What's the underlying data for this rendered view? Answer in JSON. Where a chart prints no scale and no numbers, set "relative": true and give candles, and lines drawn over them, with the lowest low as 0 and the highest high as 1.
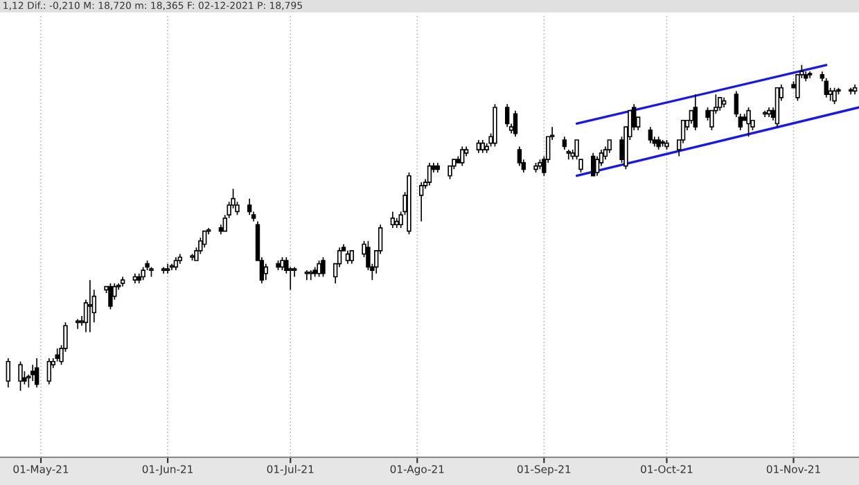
{
  "chart_data": {
    "type": "candlestick",
    "relative": true,
    "annotations": [
      "1,12 Dif.: -0,210 M: 18,720 m: 18,365 F: 02-12-2021 P: 18,795"
    ],
    "x": [
      "2021-04-23",
      "2021-04-26",
      "2021-04-27",
      "2021-04-28",
      "2021-04-29",
      "2021-04-30",
      "2021-05-03",
      "2021-05-04",
      "2021-05-05",
      "2021-05-06",
      "2021-05-07",
      "2021-05-10",
      "2021-05-11",
      "2021-05-12",
      "2021-05-13",
      "2021-05-14",
      "2021-05-17",
      "2021-05-18",
      "2021-05-19",
      "2021-05-20",
      "2021-05-21",
      "2021-05-24",
      "2021-05-25",
      "2021-05-26",
      "2021-05-27",
      "2021-05-28",
      "2021-05-31",
      "2021-06-01",
      "2021-06-02",
      "2021-06-03",
      "2021-06-04",
      "2021-06-07",
      "2021-06-08",
      "2021-06-09",
      "2021-06-10",
      "2021-06-11",
      "2021-06-14",
      "2021-06-15",
      "2021-06-16",
      "2021-06-17",
      "2021-06-18",
      "2021-06-21",
      "2021-06-22",
      "2021-06-23",
      "2021-06-24",
      "2021-06-25",
      "2021-06-28",
      "2021-06-29",
      "2021-06-30",
      "2021-07-01",
      "2021-07-02",
      "2021-07-05",
      "2021-07-06",
      "2021-07-07",
      "2021-07-08",
      "2021-07-09",
      "2021-07-12",
      "2021-07-13",
      "2021-07-14",
      "2021-07-15",
      "2021-07-16",
      "2021-07-19",
      "2021-07-20",
      "2021-07-21",
      "2021-07-22",
      "2021-07-23",
      "2021-07-26",
      "2021-07-27",
      "2021-07-28",
      "2021-07-29",
      "2021-07-30",
      "2021-08-02",
      "2021-08-03",
      "2021-08-04",
      "2021-08-05",
      "2021-08-06",
      "2021-08-09",
      "2021-08-10",
      "2021-08-11",
      "2021-08-12",
      "2021-08-13",
      "2021-08-16",
      "2021-08-17",
      "2021-08-18",
      "2021-08-19",
      "2021-08-20",
      "2021-08-23",
      "2021-08-24",
      "2021-08-25",
      "2021-08-26",
      "2021-08-27",
      "2021-08-30",
      "2021-08-31",
      "2021-09-01",
      "2021-09-02",
      "2021-09-03",
      "2021-09-06",
      "2021-09-07",
      "2021-09-08",
      "2021-09-09",
      "2021-09-10",
      "2021-09-13",
      "2021-09-14",
      "2021-09-15",
      "2021-09-16",
      "2021-09-17",
      "2021-09-20",
      "2021-09-21",
      "2021-09-22",
      "2021-09-23",
      "2021-09-24",
      "2021-09-27",
      "2021-09-28",
      "2021-09-29",
      "2021-09-30",
      "2021-10-01",
      "2021-10-04",
      "2021-10-05",
      "2021-10-06",
      "2021-10-07",
      "2021-10-08",
      "2021-10-11",
      "2021-10-12",
      "2021-10-13",
      "2021-10-14",
      "2021-10-15",
      "2021-10-18",
      "2021-10-19",
      "2021-10-20",
      "2021-10-21",
      "2021-10-22",
      "2021-10-25",
      "2021-10-26",
      "2021-10-27",
      "2021-10-28",
      "2021-10-29",
      "2021-11-01",
      "2021-11-02",
      "2021-11-03",
      "2021-11-04",
      "2021-11-05",
      "2021-11-08",
      "2021-11-09",
      "2021-11-10",
      "2021-11-11",
      "2021-11-12",
      "2021-11-15",
      "2021-11-16"
    ],
    "ohlc": [
      [
        0.03,
        0.1,
        0.01,
        0.09
      ],
      [
        0.03,
        0.09,
        0.0,
        0.08
      ],
      [
        0.04,
        0.06,
        0.02,
        0.03
      ],
      [
        0.04,
        0.05,
        0.01,
        0.04
      ],
      [
        0.06,
        0.08,
        0.03,
        0.05
      ],
      [
        0.07,
        0.1,
        0.01,
        0.02
      ],
      [
        0.03,
        0.1,
        0.02,
        0.09
      ],
      [
        0.08,
        0.1,
        0.07,
        0.09
      ],
      [
        0.11,
        0.13,
        0.09,
        0.1
      ],
      [
        0.09,
        0.14,
        0.08,
        0.13
      ],
      [
        0.13,
        0.21,
        0.12,
        0.2
      ],
      [
        0.21,
        0.22,
        0.19,
        0.21
      ],
      [
        0.21,
        0.23,
        0.2,
        0.21
      ],
      [
        0.21,
        0.28,
        0.18,
        0.27
      ],
      [
        0.26,
        0.34,
        0.18,
        0.26
      ],
      [
        0.24,
        0.31,
        0.21,
        0.29
      ],
      [
        0.31,
        0.32,
        0.3,
        0.32
      ],
      [
        0.32,
        0.33,
        0.25,
        0.26
      ],
      [
        0.29,
        0.33,
        0.28,
        0.32
      ],
      [
        0.32,
        0.33,
        0.31,
        0.32
      ],
      [
        0.33,
        0.35,
        0.32,
        0.34
      ],
      [
        0.34,
        0.36,
        0.33,
        0.35
      ],
      [
        0.35,
        0.36,
        0.33,
        0.34
      ],
      [
        0.35,
        0.38,
        0.34,
        0.37
      ],
      [
        0.39,
        0.4,
        0.37,
        0.38
      ],
      [
        0.37,
        0.38,
        0.35,
        0.37
      ],
      [
        0.37,
        0.38,
        0.36,
        0.37
      ],
      [
        0.37,
        0.39,
        0.36,
        0.37
      ],
      [
        0.38,
        0.39,
        0.37,
        0.38
      ],
      [
        0.38,
        0.41,
        0.37,
        0.4
      ],
      [
        0.4,
        0.42,
        0.39,
        0.41
      ],
      [
        0.41,
        0.42,
        0.4,
        0.41
      ],
      [
        0.4,
        0.44,
        0.4,
        0.43
      ],
      [
        0.43,
        0.47,
        0.42,
        0.46
      ],
      [
        0.45,
        0.49,
        0.44,
        0.49
      ],
      [
        0.49,
        0.5,
        0.48,
        0.49
      ],
      [
        0.5,
        0.51,
        0.48,
        0.49
      ],
      [
        0.49,
        0.54,
        0.49,
        0.53
      ],
      [
        0.54,
        0.58,
        0.53,
        0.57
      ],
      [
        0.57,
        0.62,
        0.56,
        0.59
      ],
      [
        0.55,
        0.58,
        0.54,
        0.57
      ],
      [
        0.57,
        0.59,
        0.54,
        0.55
      ],
      [
        0.54,
        0.55,
        0.52,
        0.53
      ],
      [
        0.51,
        0.52,
        0.4,
        0.4
      ],
      [
        0.4,
        0.41,
        0.33,
        0.34
      ],
      [
        0.36,
        0.39,
        0.34,
        0.38
      ],
      [
        0.39,
        0.4,
        0.37,
        0.38
      ],
      [
        0.38,
        0.41,
        0.37,
        0.4
      ],
      [
        0.4,
        0.41,
        0.36,
        0.37
      ],
      [
        0.37,
        0.38,
        0.31,
        0.37
      ],
      [
        0.37,
        0.38,
        0.35,
        0.37
      ],
      [
        0.36,
        0.37,
        0.34,
        0.36
      ],
      [
        0.36,
        0.37,
        0.34,
        0.36
      ],
      [
        0.37,
        0.38,
        0.35,
        0.36
      ],
      [
        0.36,
        0.4,
        0.35,
        0.39
      ],
      [
        0.4,
        0.41,
        0.35,
        0.36
      ],
      [
        0.35,
        0.39,
        0.33,
        0.39
      ],
      [
        0.39,
        0.44,
        0.38,
        0.43
      ],
      [
        0.44,
        0.45,
        0.43,
        0.43
      ],
      [
        0.4,
        0.43,
        0.39,
        0.42
      ],
      [
        0.4,
        0.43,
        0.39,
        0.43
      ],
      [
        0.42,
        0.46,
        0.41,
        0.45
      ],
      [
        0.44,
        0.46,
        0.37,
        0.38
      ],
      [
        0.38,
        0.39,
        0.34,
        0.37
      ],
      [
        0.38,
        0.43,
        0.36,
        0.43
      ],
      [
        0.43,
        0.51,
        0.42,
        0.5
      ],
      [
        0.51,
        0.55,
        0.5,
        0.53
      ],
      [
        0.51,
        0.53,
        0.5,
        0.52
      ],
      [
        0.51,
        0.55,
        0.5,
        0.54
      ],
      [
        0.55,
        0.61,
        0.54,
        0.6
      ],
      [
        0.49,
        0.67,
        0.48,
        0.66
      ],
      [
        0.6,
        0.64,
        0.52,
        0.63
      ],
      [
        0.63,
        0.65,
        0.62,
        0.64
      ],
      [
        0.64,
        0.7,
        0.63,
        0.69
      ],
      [
        0.69,
        0.7,
        0.67,
        0.68
      ],
      [
        0.69,
        0.7,
        0.67,
        0.68
      ],
      [
        0.66,
        0.69,
        0.65,
        0.69
      ],
      [
        0.69,
        0.71,
        0.68,
        0.71
      ],
      [
        0.71,
        0.72,
        0.7,
        0.7
      ],
      [
        0.7,
        0.75,
        0.69,
        0.74
      ],
      [
        0.73,
        0.75,
        0.72,
        0.74
      ],
      [
        0.74,
        0.77,
        0.73,
        0.76
      ],
      [
        0.74,
        0.77,
        0.73,
        0.76
      ],
      [
        0.74,
        0.76,
        0.73,
        0.75
      ],
      [
        0.76,
        0.79,
        0.75,
        0.78
      ],
      [
        0.76,
        0.88,
        0.75,
        0.87
      ],
      [
        0.87,
        0.88,
        0.81,
        0.82
      ],
      [
        0.8,
        0.82,
        0.79,
        0.81
      ],
      [
        0.85,
        0.86,
        0.78,
        0.79
      ],
      [
        0.74,
        0.75,
        0.69,
        0.7
      ],
      [
        0.7,
        0.71,
        0.67,
        0.68
      ],
      [
        0.68,
        0.7,
        0.67,
        0.69
      ],
      [
        0.69,
        0.71,
        0.68,
        0.7
      ],
      [
        0.71,
        0.72,
        0.66,
        0.67
      ],
      [
        0.71,
        0.78,
        0.7,
        0.78
      ],
      [
        0.78,
        0.81,
        0.77,
        0.78
      ],
      [
        0.77,
        0.78,
        0.74,
        0.75
      ],
      [
        0.73,
        0.74,
        0.71,
        0.73
      ],
      [
        0.72,
        0.74,
        0.71,
        0.73
      ],
      [
        0.72,
        0.77,
        0.71,
        0.77
      ],
      [
        0.68,
        0.71,
        0.67,
        0.71
      ],
      [
        0.72,
        0.73,
        0.66,
        0.66
      ],
      [
        0.67,
        0.72,
        0.66,
        0.71
      ],
      [
        0.7,
        0.74,
        0.69,
        0.73
      ],
      [
        0.72,
        0.75,
        0.71,
        0.74
      ],
      [
        0.74,
        0.77,
        0.73,
        0.77
      ],
      [
        0.77,
        0.78,
        0.7,
        0.71
      ],
      [
        0.69,
        0.81,
        0.68,
        0.81
      ],
      [
        0.78,
        0.86,
        0.77,
        0.86
      ],
      [
        0.87,
        0.88,
        0.8,
        0.81
      ],
      [
        0.81,
        0.84,
        0.8,
        0.84
      ],
      [
        0.8,
        0.81,
        0.76,
        0.77
      ],
      [
        0.77,
        0.78,
        0.75,
        0.76
      ],
      [
        0.77,
        0.78,
        0.74,
        0.75
      ],
      [
        0.76,
        0.77,
        0.75,
        0.76
      ],
      [
        0.75,
        0.77,
        0.74,
        0.76
      ],
      [
        0.74,
        0.77,
        0.72,
        0.77
      ],
      [
        0.77,
        0.83,
        0.76,
        0.83
      ],
      [
        0.81,
        0.83,
        0.8,
        0.83
      ],
      [
        0.83,
        0.86,
        0.82,
        0.86
      ],
      [
        0.87,
        0.91,
        0.8,
        0.81
      ],
      [
        0.86,
        0.87,
        0.83,
        0.84
      ],
      [
        0.81,
        0.86,
        0.8,
        0.86
      ],
      [
        0.86,
        0.91,
        0.85,
        0.87
      ],
      [
        0.87,
        0.9,
        0.86,
        0.9
      ],
      [
        0.88,
        0.9,
        0.87,
        0.89
      ],
      [
        0.91,
        0.92,
        0.84,
        0.85
      ],
      [
        0.84,
        0.85,
        0.8,
        0.81
      ],
      [
        0.84,
        0.85,
        0.83,
        0.83
      ],
      [
        0.82,
        0.87,
        0.78,
        0.86
      ],
      [
        0.81,
        0.83,
        0.8,
        0.83
      ],
      [
        0.85,
        0.86,
        0.84,
        0.85
      ],
      [
        0.85,
        0.87,
        0.84,
        0.86
      ],
      [
        0.86,
        0.87,
        0.83,
        0.84
      ],
      [
        0.82,
        0.93,
        0.81,
        0.93
      ],
      [
        0.9,
        0.94,
        0.89,
        0.93
      ],
      [
        0.94,
        0.95,
        0.93,
        0.93
      ],
      [
        0.9,
        0.97,
        0.89,
        0.97
      ],
      [
        0.97,
        1.0,
        0.96,
        0.98
      ],
      [
        0.97,
        0.98,
        0.95,
        0.96
      ],
      [
        0.97,
        0.98,
        0.96,
        0.97
      ],
      [
        0.97,
        0.98,
        0.95,
        0.96
      ],
      [
        0.95,
        0.96,
        0.9,
        0.91
      ],
      [
        0.91,
        0.93,
        0.89,
        0.92
      ],
      [
        0.89,
        0.93,
        0.88,
        0.92
      ],
      [
        0.92,
        0.93,
        0.91,
        0.92
      ],
      [
        0.92,
        0.93,
        0.91,
        0.92
      ],
      [
        0.92,
        0.94,
        0.91,
        0.93
      ]
    ],
    "series": [
      {
        "type": "line",
        "color": "#1414ff",
        "x": [
          "2021-09-09",
          "2021-11-09"
        ],
        "values": [
          0.82,
          1.0
        ]
      },
      {
        "type": "line",
        "color": "#1414ff",
        "x": [
          "2021-09-09",
          "2021-11-17"
        ],
        "values": [
          0.66,
          0.87
        ]
      }
    ],
    "xlim": [
      "2021-04-21",
      "2021-11-17"
    ],
    "xticks": [
      {
        "value": "2021-05-01",
        "label": "01-May-21"
      },
      {
        "value": "2021-06-01",
        "label": "01-Jun-21"
      },
      {
        "value": "2021-07-01",
        "label": "01-Jul-21"
      },
      {
        "value": "2021-08-01",
        "label": "01-Ago-21"
      },
      {
        "value": "2021-09-01",
        "label": "01-Sep-21"
      },
      {
        "value": "2021-10-01",
        "label": "01-Oct-21"
      },
      {
        "value": "2021-11-01",
        "label": "01-Nov-21"
      }
    ],
    "grid": "x"
  }
}
